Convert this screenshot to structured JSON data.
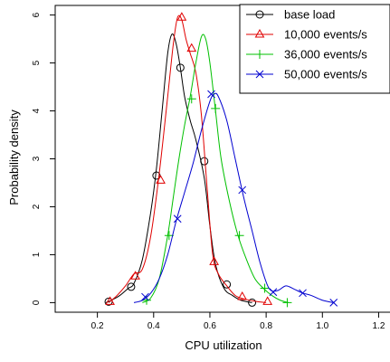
{
  "chart_data": {
    "type": "line",
    "xlabel": "CPU utilization",
    "ylabel": "Probability density",
    "xlim": [
      0.05,
      1.25
    ],
    "ylim": [
      -0.2,
      6.2
    ],
    "x_ticks": [
      0.2,
      0.4,
      0.6,
      0.8,
      1.0,
      1.2
    ],
    "x_tick_labels": [
      "0.2",
      "0.4",
      "0.6",
      "0.8",
      "1.0",
      "1.2"
    ],
    "y_ticks": [
      0,
      1,
      2,
      3,
      4,
      5,
      6
    ],
    "y_tick_labels": [
      "0",
      "1",
      "2",
      "3",
      "4",
      "5",
      "6"
    ],
    "grid": false,
    "legend_position": "top-right",
    "series": [
      {
        "name": "base load",
        "color": "#000000",
        "marker": "circle",
        "x": [
          0.23,
          0.25,
          0.28,
          0.31,
          0.33,
          0.36,
          0.39,
          0.41,
          0.43,
          0.45,
          0.465,
          0.48,
          0.495,
          0.51,
          0.53,
          0.55,
          0.58,
          0.6,
          0.62,
          0.65,
          0.68,
          0.71,
          0.75
        ],
        "y": [
          0.0,
          0.05,
          0.15,
          0.3,
          0.4,
          0.9,
          1.9,
          2.8,
          4.0,
          5.2,
          5.6,
          5.4,
          4.9,
          4.3,
          3.8,
          3.4,
          2.6,
          1.6,
          0.8,
          0.3,
          0.15,
          0.05,
          0.0
        ],
        "marker_x": [
          0.24,
          0.32,
          0.41,
          0.495,
          0.58,
          0.66,
          0.75
        ],
        "marker_y": [
          0.02,
          0.33,
          2.65,
          4.9,
          2.95,
          0.38,
          0.0
        ]
      },
      {
        "name": "10,000 events/s",
        "color": "#e00000",
        "marker": "triangle",
        "x": [
          0.24,
          0.27,
          0.3,
          0.33,
          0.36,
          0.39,
          0.42,
          0.45,
          0.47,
          0.485,
          0.5,
          0.515,
          0.53,
          0.55,
          0.57,
          0.59,
          0.61,
          0.63,
          0.66,
          0.69,
          0.72,
          0.76,
          0.8
        ],
        "y": [
          0.0,
          0.15,
          0.35,
          0.6,
          0.7,
          1.4,
          2.7,
          4.3,
          5.4,
          5.95,
          5.9,
          5.5,
          5.2,
          4.8,
          3.9,
          2.4,
          1.0,
          0.6,
          0.35,
          0.15,
          0.08,
          0.03,
          0.0
        ],
        "marker_x": [
          0.245,
          0.335,
          0.425,
          0.5,
          0.535,
          0.615,
          0.715,
          0.805
        ],
        "marker_y": [
          0.02,
          0.55,
          2.55,
          5.95,
          5.3,
          0.85,
          0.12,
          0.02
        ]
      },
      {
        "name": "36,000 events/s",
        "color": "#00c000",
        "marker": "plus",
        "x": [
          0.36,
          0.39,
          0.42,
          0.45,
          0.47,
          0.49,
          0.51,
          0.53,
          0.55,
          0.57,
          0.585,
          0.6,
          0.62,
          0.64,
          0.67,
          0.7,
          0.73,
          0.76,
          0.79,
          0.82,
          0.85,
          0.88
        ],
        "y": [
          0.0,
          0.1,
          0.5,
          1.4,
          2.2,
          3.0,
          3.7,
          4.3,
          5.0,
          5.55,
          5.5,
          5.0,
          4.0,
          3.0,
          2.1,
          1.4,
          0.9,
          0.5,
          0.3,
          0.15,
          0.05,
          0.0
        ],
        "marker_x": [
          0.375,
          0.455,
          0.535,
          0.62,
          0.705,
          0.795,
          0.875
        ],
        "marker_y": [
          0.05,
          1.4,
          4.25,
          4.05,
          1.4,
          0.3,
          0.0
        ]
      },
      {
        "name": "50,000 events/s",
        "color": "#0000d0",
        "marker": "cross",
        "x": [
          0.33,
          0.36,
          0.39,
          0.42,
          0.45,
          0.48,
          0.51,
          0.54,
          0.57,
          0.6,
          0.615,
          0.63,
          0.66,
          0.69,
          0.72,
          0.75,
          0.78,
          0.81,
          0.84,
          0.87,
          0.9,
          0.93,
          0.96,
          1.0,
          1.04
        ],
        "y": [
          0.0,
          0.05,
          0.2,
          0.5,
          1.0,
          1.7,
          2.3,
          2.9,
          3.6,
          4.2,
          4.35,
          4.3,
          3.8,
          3.0,
          2.2,
          1.5,
          0.8,
          0.3,
          0.25,
          0.35,
          0.28,
          0.2,
          0.15,
          0.05,
          0.0
        ],
        "marker_x": [
          0.37,
          0.485,
          0.605,
          0.715,
          0.825,
          0.93,
          1.04
        ],
        "marker_y": [
          0.12,
          1.75,
          4.35,
          2.35,
          0.22,
          0.2,
          0.0
        ]
      }
    ]
  }
}
